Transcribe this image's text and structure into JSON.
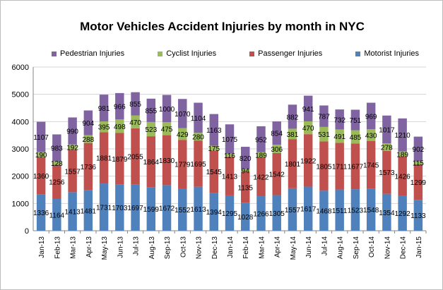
{
  "chart_data": {
    "type": "bar",
    "stacked": true,
    "title": "Motor Vehicles Accident Injuries by month in NYC",
    "xlabel": "",
    "ylabel": "",
    "ylim": [
      0,
      6000
    ],
    "yticks": [
      "0",
      "1000",
      "2000",
      "3000",
      "4000",
      "5000",
      "6000"
    ],
    "yticks_values": [
      0,
      1000,
      2000,
      3000,
      4000,
      5000,
      6000
    ],
    "grid": true,
    "legend_position": "top",
    "categories": [
      "Jan-13",
      "Feb-13",
      "Mar-13",
      "Apr-13",
      "May-13",
      "Jun-13",
      "Jul-13",
      "Aug-13",
      "Sep-13",
      "Oct-13",
      "Nov-13",
      "Dec-13",
      "Jan-14",
      "Feb-14",
      "Mar-14",
      "Apr-14",
      "May-14",
      "Jun-14",
      "Jul-14",
      "Aug-14",
      "Sep-14",
      "Oct-14",
      "Nov-14",
      "Dec-14",
      "Jan-15"
    ],
    "series": [
      {
        "name": "Motorist Injuries",
        "color": "#4f81bd",
        "values": [
          1336,
          1164,
          1413,
          1481,
          1731,
          1703,
          1697,
          1599,
          1672,
          1552,
          1613,
          1394,
          1295,
          1028,
          1266,
          1305,
          1557,
          1617,
          1468,
          1511,
          1523,
          1548,
          1354,
          1292,
          1133
        ]
      },
      {
        "name": "Passenger Injuries",
        "color": "#c0504d",
        "values": [
          1360,
          1256,
          1557,
          1736,
          1881,
          1879,
          2055,
          1864,
          1830,
          1779,
          1695,
          1545,
          1413,
          1135,
          1422,
          1542,
          1801,
          1922,
          1805,
          1711,
          1677,
          1745,
          1573,
          1426,
          1299
        ]
      },
      {
        "name": "Cyclist Injuries",
        "color": "#9bbb59",
        "values": [
          190,
          128,
          192,
          288,
          395,
          498,
          470,
          523,
          475,
          429,
          280,
          175,
          116,
          94,
          189,
          306,
          381,
          470,
          531,
          491,
          485,
          430,
          278,
          189,
          115
        ]
      },
      {
        "name": "Pedestrian Injuries",
        "color": "#8064a2",
        "values": [
          1107,
          983,
          990,
          904,
          981,
          966,
          855,
          855,
          1000,
          1070,
          1104,
          1163,
          1075,
          820,
          952,
          854,
          882,
          941,
          787,
          732,
          751,
          969,
          1017,
          1210,
          902
        ]
      }
    ],
    "legend_order": [
      3,
      2,
      1,
      0
    ]
  }
}
